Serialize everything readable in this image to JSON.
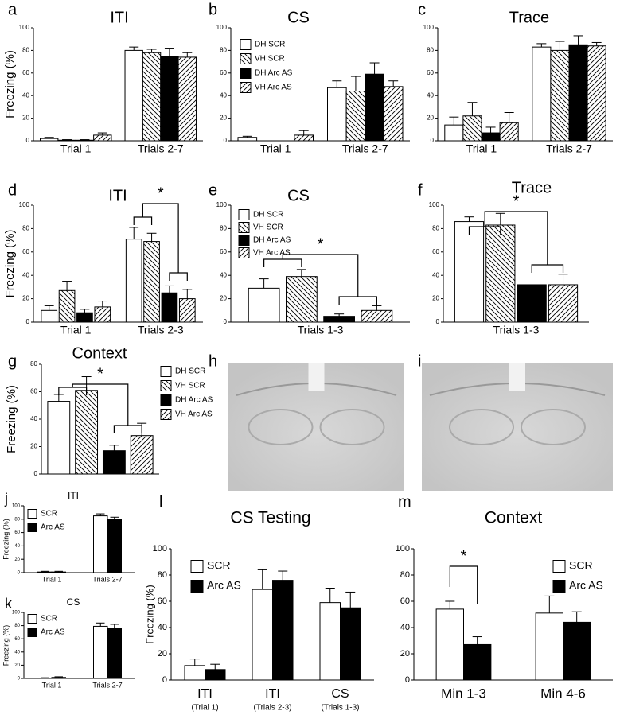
{
  "chart_data": [
    {
      "type": "bar",
      "label": "a",
      "title": "ITI",
      "ylabel": "Freezing (%)",
      "categories": [
        "Trial 1",
        "Trials 2-7"
      ],
      "series": [
        {
          "color": "#ffffff",
          "hatch": "none",
          "values": [
            2,
            80
          ],
          "errors": [
            1,
            3
          ]
        },
        {
          "color": "#ffffff",
          "hatch": "backward",
          "values": [
            0.5,
            78
          ],
          "errors": [
            0.5,
            3
          ]
        },
        {
          "color": "#000000",
          "hatch": "none",
          "values": [
            0.5,
            75
          ],
          "errors": [
            0.5,
            7
          ]
        },
        {
          "color": "#ffffff",
          "hatch": "forward",
          "values": [
            5,
            74
          ],
          "errors": [
            2,
            4
          ]
        }
      ],
      "ylim": [
        0,
        100
      ],
      "yticks": [
        0,
        20,
        40,
        60,
        80,
        100
      ]
    },
    {
      "type": "bar",
      "label": "b",
      "title": "CS",
      "categories": [
        "Trial 1",
        "Trials 2-7"
      ],
      "series": [
        {
          "name": "DH SCR",
          "color": "#ffffff",
          "hatch": "none",
          "values": [
            3,
            47
          ],
          "errors": [
            1,
            6
          ]
        },
        {
          "name": "VH SCR",
          "color": "#ffffff",
          "hatch": "backward",
          "values": [
            0,
            44
          ],
          "errors": [
            0,
            13
          ]
        },
        {
          "name": "DH Arc AS",
          "color": "#000000",
          "hatch": "none",
          "values": [
            0,
            59
          ],
          "errors": [
            0,
            10
          ]
        },
        {
          "name": "VH Arc AS",
          "color": "#ffffff",
          "hatch": "forward",
          "values": [
            5,
            48
          ],
          "errors": [
            4,
            5
          ]
        }
      ],
      "ylim": [
        0,
        100
      ],
      "yticks": [
        0,
        20,
        40,
        60,
        80,
        100
      ]
    },
    {
      "type": "bar",
      "label": "c",
      "title": "Trace",
      "categories": [
        "Trial 1",
        "Trials 2-7"
      ],
      "series": [
        {
          "color": "#ffffff",
          "hatch": "none",
          "values": [
            14,
            83
          ],
          "errors": [
            7,
            3
          ]
        },
        {
          "color": "#ffffff",
          "hatch": "backward",
          "values": [
            22,
            80
          ],
          "errors": [
            12,
            8
          ]
        },
        {
          "color": "#000000",
          "hatch": "none",
          "values": [
            7,
            85
          ],
          "errors": [
            5,
            8
          ]
        },
        {
          "color": "#ffffff",
          "hatch": "forward",
          "values": [
            16,
            84
          ],
          "errors": [
            9,
            3
          ]
        }
      ],
      "ylim": [
        0,
        100
      ],
      "yticks": [
        0,
        20,
        40,
        60,
        80,
        100
      ]
    },
    {
      "type": "bar",
      "label": "d",
      "title": "ITI",
      "ylabel": "Freezing (%)",
      "categories": [
        "Trial 1",
        "Trials 2-3"
      ],
      "series": [
        {
          "color": "#ffffff",
          "hatch": "none",
          "values": [
            10,
            71
          ],
          "errors": [
            4,
            10
          ]
        },
        {
          "color": "#ffffff",
          "hatch": "backward",
          "values": [
            27,
            69
          ],
          "errors": [
            8,
            7
          ]
        },
        {
          "color": "#000000",
          "hatch": "none",
          "values": [
            8,
            25
          ],
          "errors": [
            3,
            6
          ]
        },
        {
          "color": "#ffffff",
          "hatch": "forward",
          "values": [
            13,
            20
          ],
          "errors": [
            5,
            8
          ]
        }
      ],
      "ylim": [
        0,
        100
      ],
      "yticks": [
        0,
        20,
        40,
        60,
        80,
        100
      ],
      "annotations": [
        {
          "text": "*"
        }
      ]
    },
    {
      "type": "bar",
      "label": "e",
      "title": "CS",
      "categories": [
        "Trials 1-3"
      ],
      "series": [
        {
          "name": "DH SCR",
          "color": "#ffffff",
          "hatch": "none",
          "values": [
            29
          ],
          "errors": [
            8
          ]
        },
        {
          "name": "VH SCR",
          "color": "#ffffff",
          "hatch": "backward",
          "values": [
            39
          ],
          "errors": [
            6
          ]
        },
        {
          "name": "DH Arc AS",
          "color": "#000000",
          "hatch": "none",
          "values": [
            5
          ],
          "errors": [
            2
          ]
        },
        {
          "name": "VH Arc AS",
          "color": "#ffffff",
          "hatch": "forward",
          "values": [
            10
          ],
          "errors": [
            4
          ]
        }
      ],
      "ylim": [
        0,
        100
      ],
      "yticks": [
        0,
        20,
        40,
        60,
        80,
        100
      ],
      "annotations": [
        {
          "text": "*"
        }
      ]
    },
    {
      "type": "bar",
      "label": "f",
      "title": "Trace",
      "categories": [
        "Trials 1-3"
      ],
      "series": [
        {
          "color": "#ffffff",
          "hatch": "none",
          "values": [
            86
          ],
          "errors": [
            4
          ]
        },
        {
          "color": "#ffffff",
          "hatch": "backward",
          "values": [
            83
          ],
          "errors": [
            10
          ]
        },
        {
          "color": "#000000",
          "hatch": "none",
          "values": [
            32
          ],
          "errors": [
            0
          ]
        },
        {
          "color": "#ffffff",
          "hatch": "forward",
          "values": [
            32
          ],
          "errors": [
            9
          ]
        }
      ],
      "ylim": [
        0,
        100
      ],
      "yticks": [
        0,
        20,
        40,
        60,
        80,
        100
      ],
      "annotations": [
        {
          "text": "*"
        }
      ]
    },
    {
      "type": "bar",
      "label": "g",
      "title": "Context",
      "ylabel": "Freezing (%)",
      "categories": [
        null
      ],
      "series": [
        {
          "name": "DH SCR",
          "color": "#ffffff",
          "hatch": "none",
          "values": [
            53
          ],
          "errors": [
            5
          ]
        },
        {
          "name": "VH SCR",
          "color": "#ffffff",
          "hatch": "backward",
          "values": [
            61
          ],
          "errors": [
            10
          ]
        },
        {
          "name": "DH Arc AS",
          "color": "#000000",
          "hatch": "none",
          "values": [
            17
          ],
          "errors": [
            4
          ]
        },
        {
          "name": "VH Arc AS",
          "color": "#ffffff",
          "hatch": "forward",
          "values": [
            28
          ],
          "errors": [
            9
          ]
        }
      ],
      "ylim": [
        0,
        80
      ],
      "yticks": [
        0,
        20,
        40,
        60,
        80
      ],
      "annotations": [
        {
          "text": "*"
        }
      ]
    },
    {
      "type": "image",
      "label": "h"
    },
    {
      "type": "image",
      "label": "i"
    },
    {
      "type": "bar",
      "label": "j",
      "title": "ITI",
      "ylabel": "Freezing (%)",
      "categories": [
        "Trial 1",
        "Trials 2-7"
      ],
      "series": [
        {
          "name": "SCR",
          "color": "#ffffff",
          "hatch": "none",
          "values": [
            1,
            85
          ],
          "errors": [
            1,
            3
          ]
        },
        {
          "name": "Arc AS",
          "color": "#000000",
          "hatch": "none",
          "values": [
            1,
            80
          ],
          "errors": [
            1,
            3
          ]
        }
      ],
      "ylim": [
        0,
        100
      ],
      "yticks": [
        0,
        20,
        40,
        60,
        80,
        100
      ]
    },
    {
      "type": "bar",
      "label": "k",
      "title": "CS",
      "ylabel": "Freezing (%)",
      "categories": [
        "Trial 1",
        "Trials 2-7"
      ],
      "series": [
        {
          "name": "SCR",
          "color": "#ffffff",
          "hatch": "none",
          "values": [
            0.5,
            79
          ],
          "errors": [
            0.5,
            5
          ]
        },
        {
          "name": "Arc AS",
          "color": "#000000",
          "hatch": "none",
          "values": [
            1.5,
            76
          ],
          "errors": [
            1,
            6
          ]
        }
      ],
      "ylim": [
        0,
        100
      ],
      "yticks": [
        0,
        20,
        40,
        60,
        80,
        100
      ]
    },
    {
      "type": "bar",
      "label": "l",
      "title": "CS Testing",
      "ylabel": "Freezing (%)",
      "categories": [
        "ITI",
        "ITI",
        "CS"
      ],
      "category_sublabels": [
        "(Trial 1)",
        "(Trials 2-3)",
        "(Trials 1-3)"
      ],
      "series": [
        {
          "name": "SCR",
          "color": "#ffffff",
          "hatch": "none",
          "values": [
            11,
            69,
            59
          ],
          "errors": [
            5,
            15,
            11
          ]
        },
        {
          "name": "Arc AS",
          "color": "#000000",
          "hatch": "none",
          "values": [
            8,
            76,
            55
          ],
          "errors": [
            4,
            7,
            12
          ]
        }
      ],
      "ylim": [
        0,
        100
      ],
      "yticks": [
        0,
        20,
        40,
        60,
        80,
        100
      ]
    },
    {
      "type": "bar",
      "label": "m",
      "title": "Context",
      "categories": [
        "Min 1-3",
        "Min 4-6"
      ],
      "series": [
        {
          "name": "SCR",
          "color": "#ffffff",
          "hatch": "none",
          "values": [
            54,
            51
          ],
          "errors": [
            6,
            13
          ]
        },
        {
          "name": "Arc AS",
          "color": "#000000",
          "hatch": "none",
          "values": [
            27,
            44
          ],
          "errors": [
            6,
            8
          ]
        }
      ],
      "ylim": [
        0,
        100
      ],
      "yticks": [
        0,
        20,
        40,
        60,
        80,
        100
      ],
      "annotations": [
        {
          "text": "*"
        }
      ]
    }
  ]
}
